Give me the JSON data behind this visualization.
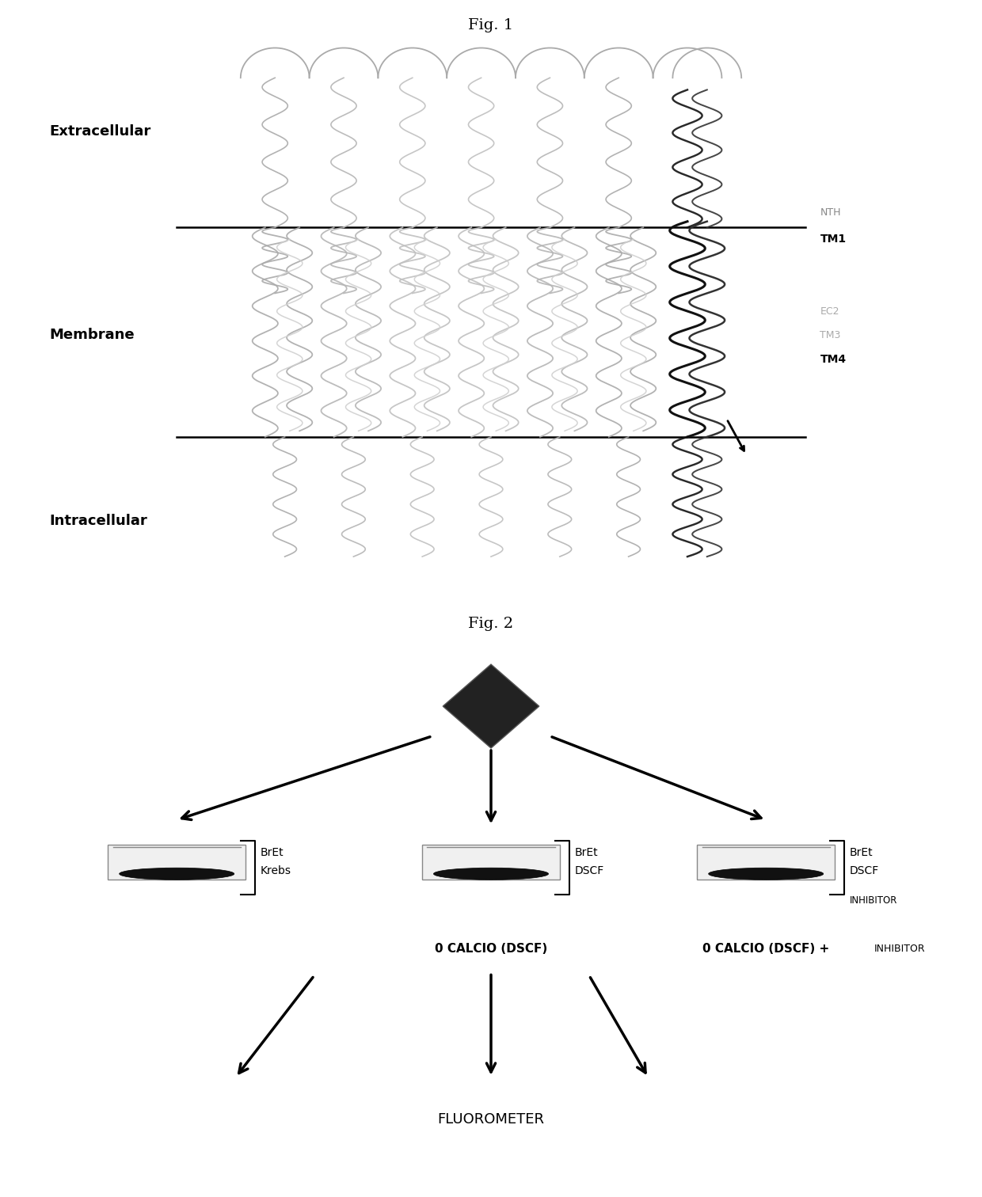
{
  "fig1_title": "Fig. 1",
  "fig2_title": "Fig. 2",
  "extracellular_label": "Extracellular",
  "membrane_label": "Membrane",
  "intracellular_label": "Intracellular",
  "NTH_label": "NTH",
  "TM1_label": "TM1",
  "EC2_label": "EC2",
  "TM3_label": "TM3",
  "TM4_label": "TM4",
  "bret_krebs": [
    "BrEt",
    "Krebs"
  ],
  "bret_dscf": [
    "BrEt",
    "DSCF"
  ],
  "inhibitor_label": "INHIBITOR",
  "zero_calcio_dscf": "0 CALCIO (DSCF)",
  "zero_calcio_dscf_inhibitor": "0 CALCIO (DSCF) +",
  "inhibitor_label2": "INHIBITOR",
  "fluorometer_label": "FLUOROMETER",
  "bg_color": "#ffffff",
  "text_color": "#000000",
  "gray_color": "#aaaaaa",
  "dark_gray": "#555555"
}
